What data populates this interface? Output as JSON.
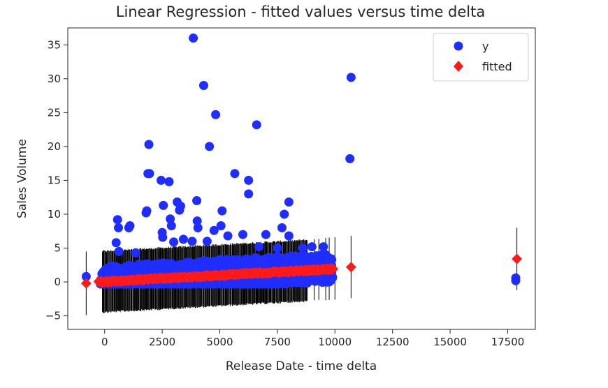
{
  "chart_data": {
    "type": "scatter",
    "title": "Linear Regression - fitted values versus time delta",
    "xlabel": "Release Date - time delta",
    "ylabel": "Sales Volume",
    "xlim": [
      -1600,
      18700
    ],
    "ylim": [
      -7,
      37.5
    ],
    "xticks": [
      0,
      2500,
      5000,
      7500,
      10000,
      12500,
      15000,
      17500
    ],
    "yticks": [
      -5,
      0,
      5,
      10,
      15,
      20,
      25,
      30,
      35
    ],
    "grid": false,
    "legend": {
      "placement": "top-right"
    },
    "series": [
      {
        "name": "y",
        "marker": "circle",
        "color": "#1f2eff",
        "points": [
          [
            -800,
            0.8
          ],
          [
            500,
            5.8
          ],
          [
            560,
            9.2
          ],
          [
            600,
            8.0
          ],
          [
            620,
            4.5
          ],
          [
            1050,
            8.0
          ],
          [
            1100,
            8.3
          ],
          [
            1350,
            4.3
          ],
          [
            1800,
            10.2
          ],
          [
            1830,
            10.5
          ],
          [
            1880,
            16.0
          ],
          [
            1950,
            16.0
          ],
          [
            1920,
            20.3
          ],
          [
            2450,
            15.0
          ],
          [
            2500,
            7.3
          ],
          [
            2520,
            6.6
          ],
          [
            2550,
            11.3
          ],
          [
            2800,
            14.8
          ],
          [
            2850,
            9.3
          ],
          [
            2900,
            8.3
          ],
          [
            3000,
            5.9
          ],
          [
            3150,
            11.8
          ],
          [
            3300,
            11.2
          ],
          [
            3250,
            10.6
          ],
          [
            3420,
            6.3
          ],
          [
            3800,
            6.0
          ],
          [
            3850,
            36.0
          ],
          [
            4000,
            12.0
          ],
          [
            4020,
            9.0
          ],
          [
            4050,
            8.0
          ],
          [
            4300,
            29.0
          ],
          [
            4450,
            6.0
          ],
          [
            4550,
            20.0
          ],
          [
            4750,
            7.6
          ],
          [
            4820,
            24.7
          ],
          [
            5050,
            8.3
          ],
          [
            5100,
            10.5
          ],
          [
            5350,
            6.8
          ],
          [
            5650,
            16.0
          ],
          [
            6000,
            7.0
          ],
          [
            6250,
            13.0
          ],
          [
            6250,
            15.0
          ],
          [
            6600,
            23.2
          ],
          [
            6700,
            5.2
          ],
          [
            7000,
            7.0
          ],
          [
            7500,
            5.0
          ],
          [
            7700,
            8.0
          ],
          [
            7800,
            10.0
          ],
          [
            8000,
            11.8
          ],
          [
            8000,
            6.8
          ],
          [
            8600,
            5.0
          ],
          [
            9000,
            5.2
          ],
          [
            9400,
            3.5
          ],
          [
            9500,
            5.2
          ],
          [
            9600,
            0.3
          ],
          [
            9800,
            1.0
          ],
          [
            9850,
            2.5
          ],
          [
            10650,
            18.2
          ],
          [
            10700,
            30.2
          ],
          [
            17850,
            0.6
          ],
          [
            17850,
            0.2
          ]
        ],
        "cloud": {
          "x_range": [
            -200,
            9900
          ],
          "y_range": [
            -0.3,
            4.3
          ],
          "count": 1100
        }
      },
      {
        "name": "fitted",
        "marker": "diamond",
        "color": "#ff1a1a",
        "points": [
          [
            -800,
            -0.2
          ],
          [
            -250,
            0.0
          ],
          [
            9500,
            1.9
          ],
          [
            9700,
            1.95
          ],
          [
            9900,
            2.0
          ],
          [
            10700,
            2.2
          ],
          [
            17900,
            3.4
          ]
        ],
        "trend": {
          "x_range": [
            -250,
            9900
          ],
          "y_range": [
            0.0,
            1.9
          ],
          "count": 220
        }
      }
    ],
    "error_bars": {
      "color": "#000000",
      "half_width": 4.5,
      "dense_range": [
        -100,
        8800
      ],
      "dense_count": 320,
      "isolated": [
        [
          -800,
          -0.2,
          4.7
        ],
        [
          9100,
          1.8,
          4.5
        ],
        [
          9300,
          1.85,
          4.5
        ],
        [
          9600,
          1.9,
          4.6
        ],
        [
          9750,
          1.95,
          4.6
        ],
        [
          10000,
          2.0,
          4.6
        ],
        [
          10700,
          2.2,
          4.6
        ],
        [
          17900,
          3.4,
          4.6
        ]
      ]
    }
  }
}
